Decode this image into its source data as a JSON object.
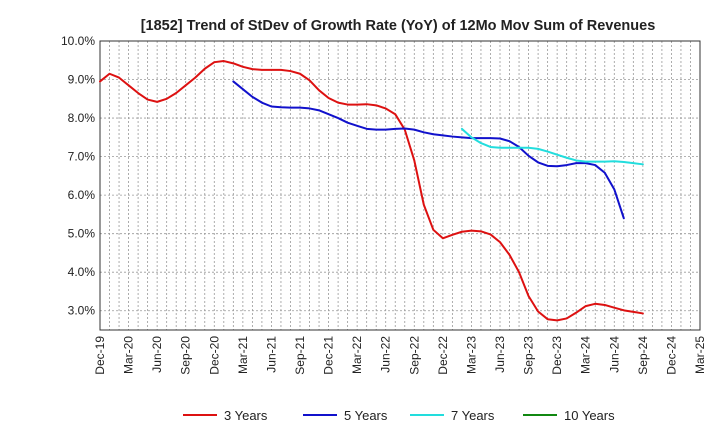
{
  "chart_data": {
    "type": "line",
    "title": "[1852]  Trend of StDev of Growth Rate (YoY) of 12Mo Mov Sum of Revenues",
    "xlabel": "",
    "ylabel": "",
    "ylim": [
      2.5,
      10.0
    ],
    "yticks": [
      3.0,
      4.0,
      5.0,
      6.0,
      7.0,
      8.0,
      9.0,
      10.0
    ],
    "ytick_labels": [
      "3.0%",
      "4.0%",
      "5.0%",
      "6.0%",
      "7.0%",
      "8.0%",
      "9.0%",
      "10.0%"
    ],
    "x_start": "Dec-19",
    "x_end": "Mar-25",
    "xtick_labels": [
      "Dec-19",
      "Mar-20",
      "Jun-20",
      "Sep-20",
      "Dec-20",
      "Mar-21",
      "Jun-21",
      "Sep-21",
      "Dec-21",
      "Mar-22",
      "Jun-22",
      "Sep-22",
      "Dec-22",
      "Mar-23",
      "Jun-23",
      "Sep-23",
      "Dec-23",
      "Mar-24",
      "Jun-24",
      "Sep-24",
      "Dec-24",
      "Mar-25"
    ],
    "grid": true,
    "legend_position": "bottom",
    "series": [
      {
        "name": "3 Years",
        "color": "#dd1111",
        "start_month": 0,
        "values": [
          8.95,
          9.15,
          9.05,
          8.85,
          8.65,
          8.48,
          8.42,
          8.5,
          8.65,
          8.85,
          9.05,
          9.28,
          9.45,
          9.48,
          9.42,
          9.33,
          9.27,
          9.25,
          9.25,
          9.25,
          9.22,
          9.15,
          8.98,
          8.72,
          8.52,
          8.4,
          8.35,
          8.35,
          8.36,
          8.33,
          8.25,
          8.1,
          7.7,
          6.9,
          5.75,
          5.1,
          4.88,
          4.97,
          5.05,
          5.08,
          5.06,
          4.98,
          4.78,
          4.45,
          4.0,
          3.38,
          2.98,
          2.78,
          2.75,
          2.8,
          2.95,
          3.12,
          3.18,
          3.15,
          3.08,
          3.01,
          2.97,
          2.93
        ]
      },
      {
        "name": "5 Years",
        "color": "#1111cc",
        "start_month": 14,
        "values": [
          8.95,
          8.75,
          8.55,
          8.4,
          8.3,
          8.28,
          8.27,
          8.27,
          8.25,
          8.2,
          8.1,
          8.0,
          7.88,
          7.8,
          7.72,
          7.7,
          7.7,
          7.72,
          7.73,
          7.7,
          7.63,
          7.58,
          7.55,
          7.52,
          7.5,
          7.48,
          7.48,
          7.48,
          7.47,
          7.4,
          7.25,
          7.02,
          6.85,
          6.76,
          6.75,
          6.78,
          6.83,
          6.83,
          6.78,
          6.58,
          6.15,
          5.4
        ]
      },
      {
        "name": "7 Years",
        "color": "#22dddd",
        "start_month": 38,
        "values": [
          7.72,
          7.5,
          7.35,
          7.25,
          7.23,
          7.23,
          7.23,
          7.23,
          7.2,
          7.13,
          7.05,
          6.97,
          6.9,
          6.87,
          6.87,
          6.87,
          6.88,
          6.86,
          6.83,
          6.8
        ]
      },
      {
        "name": "10 Years",
        "color": "#118811",
        "start_month": 0,
        "values": []
      }
    ]
  }
}
